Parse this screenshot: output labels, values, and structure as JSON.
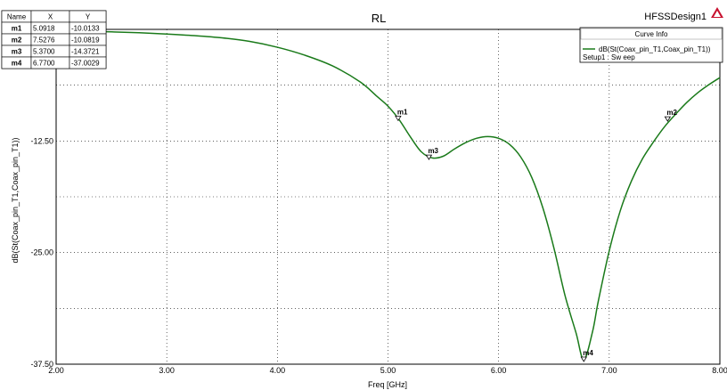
{
  "chart_data": {
    "type": "line",
    "title": "RL",
    "design_name": "HFSSDesign1",
    "xlabel": "Freq [GHz]",
    "ylabel": "dB(St(Coax_pin_T1,Coax_pin_T1))",
    "xlim": [
      2.0,
      8.0
    ],
    "ylim": [
      -37.5,
      0
    ],
    "x_ticks": [
      "2.00",
      "3.00",
      "4.00",
      "5.00",
      "6.00",
      "7.00",
      "8.00"
    ],
    "y_ticks": [
      "-12.50",
      "-25.00",
      "-37.50"
    ],
    "grid": true,
    "legend_position": "top-right",
    "legend": {
      "header": "Curve Info",
      "entry": "dB(St(Coax_pin_T1,Coax_pin_T1))",
      "sub": "Setup1 : Sw eep"
    },
    "series": [
      {
        "color": "#1a7a1a",
        "x": [
          2.0,
          2.25,
          2.5,
          2.75,
          3.0,
          3.25,
          3.5,
          3.75,
          4.0,
          4.25,
          4.5,
          4.75,
          4.9,
          5.0,
          5.1,
          5.2,
          5.3,
          5.4,
          5.5,
          5.6,
          5.7,
          5.8,
          5.9,
          6.0,
          6.1,
          6.2,
          6.3,
          6.4,
          6.5,
          6.6,
          6.7,
          6.77,
          6.85,
          6.9,
          7.0,
          7.1,
          7.2,
          7.3,
          7.4,
          7.5,
          7.6,
          7.7,
          7.8,
          7.9,
          8.0
        ],
        "y": [
          -0.2,
          -0.22,
          -0.28,
          -0.38,
          -0.52,
          -0.7,
          -0.95,
          -1.35,
          -2.0,
          -2.9,
          -4.1,
          -5.9,
          -7.5,
          -8.6,
          -10.1,
          -12.0,
          -13.7,
          -14.4,
          -14.2,
          -13.4,
          -12.7,
          -12.2,
          -12.0,
          -12.2,
          -12.9,
          -14.3,
          -16.6,
          -20.0,
          -24.5,
          -29.8,
          -34.0,
          -37.0,
          -33.8,
          -30.5,
          -24.8,
          -20.3,
          -17.0,
          -14.5,
          -12.6,
          -10.9,
          -9.5,
          -8.2,
          -7.1,
          -6.2,
          -5.4
        ]
      }
    ],
    "markers": [
      {
        "name": "m1",
        "x": 5.0918,
        "y": -10.0133
      },
      {
        "name": "m2",
        "x": 7.5276,
        "y": -10.0819
      },
      {
        "name": "m3",
        "x": 5.37,
        "y": -14.3721
      },
      {
        "name": "m4",
        "x": 6.77,
        "y": -37.0029
      }
    ],
    "marker_table": {
      "headers": [
        "Name",
        "X",
        "Y"
      ],
      "rows": [
        [
          "m1",
          "5.0918",
          "-10.0133"
        ],
        [
          "m2",
          "7.5276",
          "-10.0819"
        ],
        [
          "m3",
          "5.3700",
          "-14.3721"
        ],
        [
          "m4",
          "6.7700",
          "-37.0029"
        ]
      ]
    }
  }
}
